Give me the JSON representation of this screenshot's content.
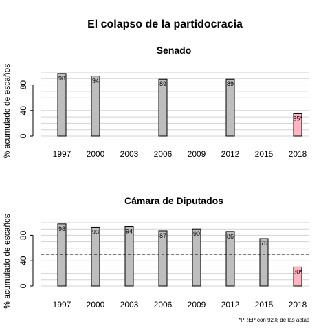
{
  "title": "El colapso de la partidocracia",
  "footnote": "*PREP con 92% de las actas",
  "colors": {
    "bar": "#bebebe",
    "highlight": "#ffb6c1",
    "grid": "#d3d3d3",
    "outline": "#000000"
  },
  "chart_data": [
    {
      "type": "bar",
      "title": "Senado",
      "ylabel": "% acumulado de escaños",
      "xlabel": "",
      "ylim": [
        0,
        100
      ],
      "yticks": [
        0,
        40,
        80
      ],
      "x_ticks": [
        "1997",
        "2000",
        "2003",
        "2006",
        "2009",
        "2012",
        "2015",
        "2018"
      ],
      "reference_line": 50,
      "grid": true,
      "bars": [
        {
          "x": "1997",
          "value": 98,
          "label": "98",
          "highlight": false
        },
        {
          "x": "2000",
          "value": 94,
          "label": "94",
          "highlight": false
        },
        {
          "x": "2006",
          "value": 89,
          "label": "89",
          "highlight": false
        },
        {
          "x": "2012",
          "value": 89,
          "label": "89",
          "highlight": false
        },
        {
          "x": "2018",
          "value": 35,
          "label": "35*",
          "highlight": true
        }
      ]
    },
    {
      "type": "bar",
      "title": "Cámara de Diputados",
      "ylabel": "% acumulado de escaños",
      "xlabel": "",
      "ylim": [
        0,
        100
      ],
      "yticks": [
        0,
        40,
        80
      ],
      "x_ticks": [
        "1997",
        "2000",
        "2003",
        "2006",
        "2009",
        "2012",
        "2015",
        "2018"
      ],
      "reference_line": 50,
      "grid": true,
      "bars": [
        {
          "x": "1997",
          "value": 98,
          "label": "98",
          "highlight": false
        },
        {
          "x": "2000",
          "value": 93,
          "label": "93",
          "highlight": false
        },
        {
          "x": "2003",
          "value": 94,
          "label": "94",
          "highlight": false
        },
        {
          "x": "2006",
          "value": 87,
          "label": "87",
          "highlight": false
        },
        {
          "x": "2009",
          "value": 90,
          "label": "90",
          "highlight": false
        },
        {
          "x": "2012",
          "value": 86,
          "label": "86",
          "highlight": false
        },
        {
          "x": "2015",
          "value": 75,
          "label": "75",
          "highlight": false
        },
        {
          "x": "2018",
          "value": 30,
          "label": "30*",
          "highlight": true
        }
      ]
    }
  ]
}
